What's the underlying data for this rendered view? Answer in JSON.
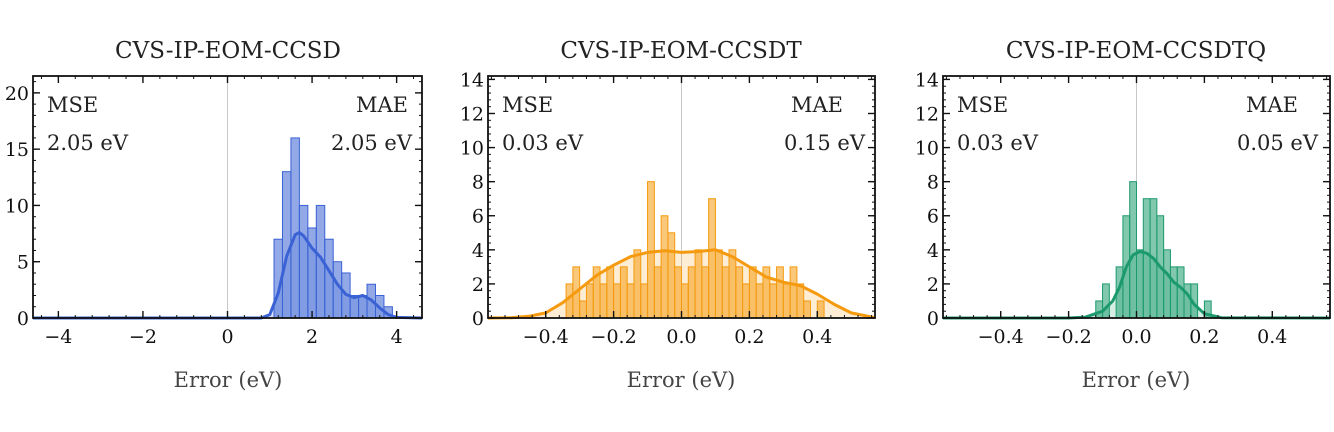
{
  "chart_data": [
    {
      "type": "histogram",
      "title": "CVS-IP-EOM-CCSD",
      "xlabel": "Error (eV)",
      "ylabel": "",
      "xlim": [
        -4.6,
        4.6
      ],
      "ylim": [
        0,
        21.5
      ],
      "xticks": [
        -4,
        -2,
        0,
        2,
        4
      ],
      "xtick_labels": [
        "−4",
        "−2",
        "0",
        "2",
        "4"
      ],
      "yticks": [
        0,
        5,
        10,
        15,
        20
      ],
      "ytick_labels": [
        "0",
        "5",
        "10",
        "15",
        "20"
      ],
      "grid": false,
      "color": "#3a62d4",
      "annotations": {
        "mse_label": "MSE",
        "mse_value": "2.05 eV",
        "mae_label": "MAE",
        "mae_value": "2.05 eV"
      },
      "bin_width": 0.2,
      "bins": [
        {
          "x": 1.2,
          "count": 7
        },
        {
          "x": 1.4,
          "count": 13
        },
        {
          "x": 1.6,
          "count": 16
        },
        {
          "x": 1.8,
          "count": 10
        },
        {
          "x": 2.0,
          "count": 8
        },
        {
          "x": 2.2,
          "count": 10
        },
        {
          "x": 2.4,
          "count": 7
        },
        {
          "x": 2.6,
          "count": 5
        },
        {
          "x": 2.8,
          "count": 4
        },
        {
          "x": 3.0,
          "count": 2
        },
        {
          "x": 3.2,
          "count": 2
        },
        {
          "x": 3.4,
          "count": 3
        },
        {
          "x": 3.6,
          "count": 2
        },
        {
          "x": 3.8,
          "count": 1
        }
      ],
      "kde": {
        "x": [
          -4.6,
          0.8,
          1.0,
          1.2,
          1.4,
          1.6,
          1.7,
          1.8,
          2.0,
          2.2,
          2.4,
          2.6,
          2.8,
          3.0,
          3.2,
          3.4,
          3.6,
          3.8,
          4.0,
          4.6
        ],
        "y": [
          0,
          0,
          0.3,
          2.2,
          5.5,
          7.4,
          7.6,
          7.3,
          6.2,
          5.4,
          4.2,
          3.0,
          2.1,
          1.8,
          2.0,
          1.6,
          0.9,
          0.3,
          0.05,
          0
        ]
      }
    },
    {
      "type": "histogram",
      "title": "CVS-IP-EOM-CCSDT",
      "xlabel": "Error (eV)",
      "ylabel": "",
      "xlim": [
        -0.57,
        0.57
      ],
      "ylim": [
        0,
        14.2
      ],
      "xticks": [
        -0.4,
        -0.2,
        0.0,
        0.2,
        0.4
      ],
      "xtick_labels": [
        "−0.4",
        "−0.2",
        "0.0",
        "0.2",
        "0.4"
      ],
      "yticks": [
        0,
        2,
        4,
        6,
        8,
        10,
        12,
        14
      ],
      "ytick_labels": [
        "0",
        "2",
        "4",
        "6",
        "8",
        "10",
        "12",
        "14"
      ],
      "grid": false,
      "color": "#f59a0e",
      "annotations": {
        "mse_label": "MSE",
        "mse_value": "0.03 eV",
        "mae_label": "MAE",
        "mae_value": "0.15 eV"
      },
      "bin_width": 0.02,
      "bins": [
        {
          "x": -0.33,
          "count": 2
        },
        {
          "x": -0.31,
          "count": 3
        },
        {
          "x": -0.29,
          "count": 1
        },
        {
          "x": -0.27,
          "count": 2
        },
        {
          "x": -0.25,
          "count": 3
        },
        {
          "x": -0.23,
          "count": 2
        },
        {
          "x": -0.21,
          "count": 3
        },
        {
          "x": -0.19,
          "count": 2
        },
        {
          "x": -0.17,
          "count": 3
        },
        {
          "x": -0.15,
          "count": 2
        },
        {
          "x": -0.13,
          "count": 4
        },
        {
          "x": -0.11,
          "count": 2
        },
        {
          "x": -0.09,
          "count": 8
        },
        {
          "x": -0.07,
          "count": 3
        },
        {
          "x": -0.05,
          "count": 6
        },
        {
          "x": -0.03,
          "count": 5
        },
        {
          "x": -0.01,
          "count": 3
        },
        {
          "x": 0.01,
          "count": 2
        },
        {
          "x": 0.03,
          "count": 3
        },
        {
          "x": 0.05,
          "count": 4
        },
        {
          "x": 0.07,
          "count": 3
        },
        {
          "x": 0.09,
          "count": 7
        },
        {
          "x": 0.11,
          "count": 4
        },
        {
          "x": 0.13,
          "count": 3
        },
        {
          "x": 0.15,
          "count": 4
        },
        {
          "x": 0.17,
          "count": 3
        },
        {
          "x": 0.19,
          "count": 2
        },
        {
          "x": 0.21,
          "count": 3
        },
        {
          "x": 0.23,
          "count": 2
        },
        {
          "x": 0.25,
          "count": 3
        },
        {
          "x": 0.27,
          "count": 2
        },
        {
          "x": 0.29,
          "count": 3
        },
        {
          "x": 0.31,
          "count": 2
        },
        {
          "x": 0.33,
          "count": 3
        },
        {
          "x": 0.35,
          "count": 2
        },
        {
          "x": 0.37,
          "count": 1
        },
        {
          "x": 0.41,
          "count": 1
        }
      ],
      "kde": {
        "x": [
          -0.57,
          -0.5,
          -0.45,
          -0.4,
          -0.35,
          -0.3,
          -0.25,
          -0.2,
          -0.15,
          -0.1,
          -0.05,
          0.0,
          0.05,
          0.1,
          0.15,
          0.2,
          0.25,
          0.3,
          0.35,
          0.4,
          0.45,
          0.5,
          0.57
        ],
        "y": [
          0,
          0.02,
          0.1,
          0.3,
          0.9,
          1.7,
          2.5,
          3.1,
          3.6,
          3.85,
          3.95,
          3.85,
          3.9,
          4.0,
          3.6,
          3.0,
          2.4,
          2.1,
          1.9,
          1.4,
          0.8,
          0.3,
          0.02
        ]
      }
    },
    {
      "type": "histogram",
      "title": "CVS-IP-EOM-CCSDTQ",
      "xlabel": "Error (eV)",
      "ylabel": "",
      "xlim": [
        -0.57,
        0.57
      ],
      "ylim": [
        0,
        14.2
      ],
      "xticks": [
        -0.4,
        -0.2,
        0.0,
        0.2,
        0.4
      ],
      "xtick_labels": [
        "−0.4",
        "−0.2",
        "0.0",
        "0.2",
        "0.4"
      ],
      "yticks": [
        0,
        2,
        4,
        6,
        8,
        10,
        12,
        14
      ],
      "ytick_labels": [
        "0",
        "2",
        "4",
        "6",
        "8",
        "10",
        "12",
        "14"
      ],
      "grid": false,
      "color": "#1c9a6e",
      "annotations": {
        "mse_label": "MSE",
        "mse_value": "0.03 eV",
        "mae_label": "MAE",
        "mae_value": "0.05 eV"
      },
      "bin_width": 0.02,
      "bins": [
        {
          "x": -0.11,
          "count": 1
        },
        {
          "x": -0.09,
          "count": 2
        },
        {
          "x": -0.05,
          "count": 3
        },
        {
          "x": -0.03,
          "count": 6
        },
        {
          "x": -0.01,
          "count": 8
        },
        {
          "x": 0.01,
          "count": 4
        },
        {
          "x": 0.03,
          "count": 7
        },
        {
          "x": 0.05,
          "count": 7
        },
        {
          "x": 0.07,
          "count": 6
        },
        {
          "x": 0.09,
          "count": 4
        },
        {
          "x": 0.11,
          "count": 3
        },
        {
          "x": 0.13,
          "count": 3
        },
        {
          "x": 0.15,
          "count": 2
        },
        {
          "x": 0.17,
          "count": 2
        },
        {
          "x": 0.21,
          "count": 1
        }
      ],
      "kde": {
        "x": [
          -0.57,
          -0.2,
          -0.15,
          -0.1,
          -0.07,
          -0.05,
          -0.03,
          -0.01,
          0.01,
          0.03,
          0.05,
          0.07,
          0.09,
          0.11,
          0.13,
          0.15,
          0.17,
          0.2,
          0.25,
          0.57
        ],
        "y": [
          0,
          0,
          0.05,
          0.4,
          1.0,
          1.8,
          3.0,
          3.7,
          3.9,
          3.8,
          3.5,
          3.0,
          2.6,
          2.1,
          1.8,
          1.4,
          0.8,
          0.25,
          0.02,
          0
        ]
      }
    }
  ]
}
